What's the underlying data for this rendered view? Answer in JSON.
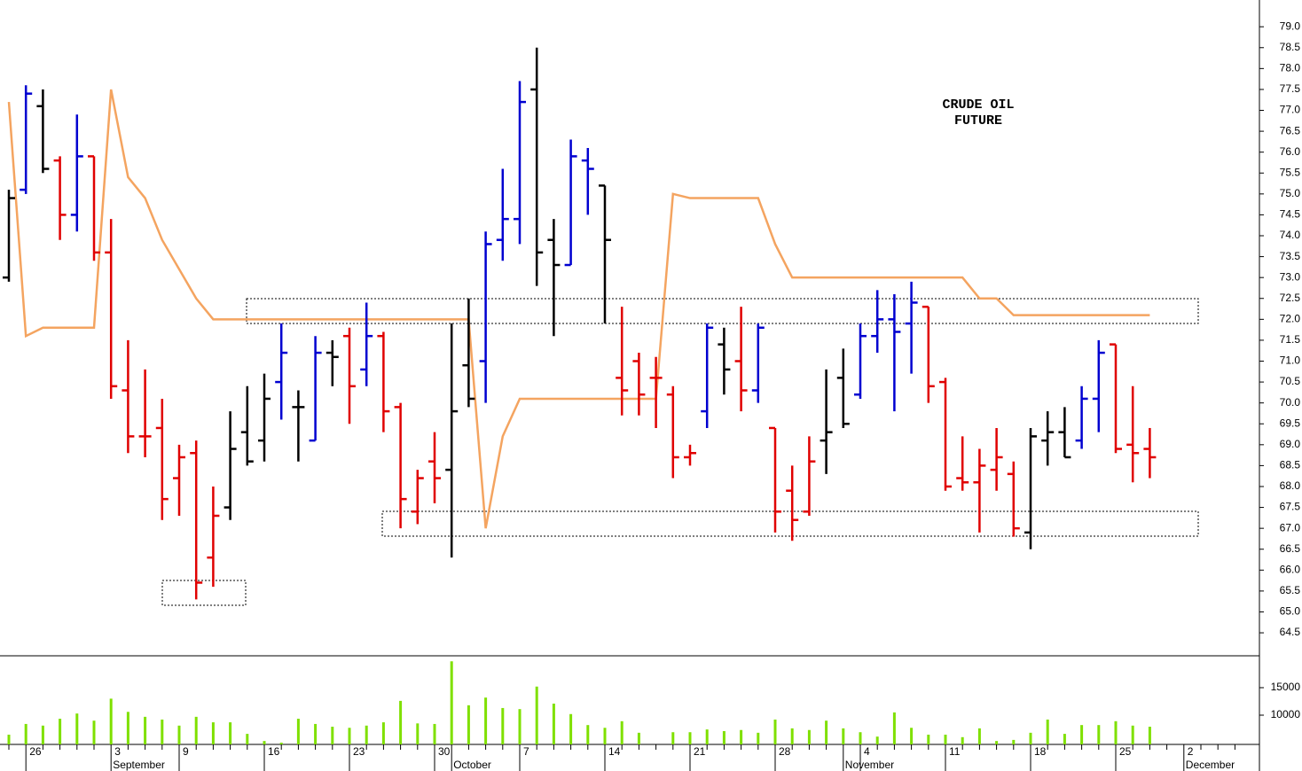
{
  "chart_data": {
    "type": "ohlc",
    "title_lines": [
      "CRUDE OIL",
      "FUTURE"
    ],
    "categories": [
      null,
      "26",
      null,
      null,
      null,
      null,
      "3",
      null,
      null,
      null,
      "9",
      null,
      null,
      null,
      null,
      "16",
      null,
      null,
      null,
      null,
      "23",
      null,
      null,
      null,
      null,
      "30",
      null,
      null,
      null,
      null,
      "7",
      null,
      null,
      null,
      null,
      "14",
      null,
      null,
      null,
      null,
      "21",
      null,
      null,
      null,
      null,
      "28",
      null,
      null,
      null,
      null,
      "4",
      null,
      null,
      null,
      null,
      "11",
      null,
      null,
      null,
      null,
      "18",
      null,
      null,
      null,
      null,
      "25",
      null,
      null,
      null,
      "2",
      null,
      null,
      null
    ],
    "month_labels": [
      null,
      null,
      null,
      null,
      null,
      null,
      "September",
      null,
      null,
      null,
      null,
      null,
      null,
      null,
      null,
      null,
      null,
      null,
      null,
      null,
      null,
      null,
      null,
      null,
      null,
      null,
      "October",
      null,
      null,
      null,
      null,
      null,
      null,
      null,
      null,
      null,
      null,
      null,
      null,
      null,
      null,
      null,
      null,
      null,
      null,
      null,
      null,
      null,
      null,
      "November",
      null,
      null,
      null,
      null,
      null,
      null,
      null,
      null,
      null,
      null,
      null,
      null,
      null,
      null,
      null,
      null,
      null,
      null,
      null,
      "December",
      null,
      null,
      null
    ],
    "open": [
      73.0,
      75.1,
      77.1,
      75.8,
      74.5,
      75.9,
      73.6,
      70.3,
      69.2,
      69.4,
      68.2,
      68.8,
      66.3,
      67.5,
      69.3,
      69.1,
      70.5,
      69.9,
      69.1,
      71.2,
      71.6,
      70.8,
      71.6,
      69.9,
      67.4,
      68.6,
      68.4,
      70.9,
      71.0,
      73.9,
      74.4,
      77.5,
      73.9,
      73.3,
      75.8,
      75.2,
      70.6,
      71.0,
      70.6,
      70.2,
      68.7,
      69.8,
      71.4,
      71.0,
      70.3,
      69.4,
      67.9,
      67.4,
      69.1,
      70.6,
      70.2,
      71.6,
      72.0,
      71.9,
      72.3,
      70.5,
      68.2,
      68.1,
      68.4,
      68.3,
      66.9,
      69.1,
      69.3,
      69.1,
      70.1,
      71.4,
      69.0,
      68.9,
      null,
      null,
      null,
      null,
      null
    ],
    "high": [
      75.1,
      77.6,
      77.5,
      75.9,
      76.9,
      75.9,
      74.4,
      71.5,
      70.8,
      70.1,
      69.0,
      69.1,
      68.0,
      69.8,
      70.4,
      70.7,
      71.9,
      70.3,
      71.6,
      71.5,
      71.8,
      72.4,
      71.7,
      70.0,
      68.4,
      69.3,
      71.9,
      72.5,
      74.1,
      75.6,
      77.7,
      78.5,
      74.4,
      76.3,
      76.1,
      75.2,
      72.3,
      71.2,
      71.1,
      70.4,
      69.0,
      71.9,
      71.8,
      72.3,
      71.9,
      69.4,
      68.5,
      69.2,
      70.8,
      71.3,
      71.9,
      72.7,
      72.6,
      72.9,
      72.3,
      70.6,
      69.2,
      68.9,
      69.4,
      68.6,
      69.4,
      69.8,
      69.9,
      70.4,
      71.5,
      71.4,
      70.4,
      69.4,
      null,
      null,
      null,
      null,
      null
    ],
    "low": [
      72.9,
      75.0,
      75.5,
      73.9,
      74.1,
      73.4,
      70.1,
      68.8,
      68.7,
      67.2,
      67.3,
      65.3,
      65.6,
      67.2,
      68.5,
      68.6,
      69.6,
      68.6,
      69.1,
      70.4,
      69.5,
      70.4,
      69.3,
      67.0,
      67.1,
      67.6,
      66.3,
      69.9,
      70.0,
      73.4,
      73.8,
      72.8,
      71.6,
      73.3,
      74.5,
      71.9,
      69.7,
      69.7,
      69.4,
      68.2,
      68.5,
      69.4,
      70.2,
      69.8,
      70.0,
      66.9,
      66.7,
      67.3,
      68.3,
      69.4,
      70.1,
      71.2,
      69.8,
      70.7,
      70.0,
      67.9,
      67.9,
      66.9,
      67.9,
      66.8,
      66.5,
      68.5,
      68.7,
      68.9,
      69.3,
      68.8,
      68.1,
      68.2,
      null,
      null,
      null,
      null,
      null
    ],
    "close": [
      74.9,
      77.4,
      75.6,
      74.5,
      75.9,
      73.6,
      70.4,
      69.2,
      69.2,
      67.7,
      68.7,
      65.7,
      67.3,
      68.9,
      68.6,
      70.1,
      71.2,
      69.9,
      71.2,
      71.1,
      70.4,
      71.6,
      69.8,
      67.7,
      68.2,
      68.2,
      69.8,
      70.1,
      73.8,
      74.4,
      77.2,
      73.6,
      73.3,
      75.9,
      75.6,
      73.9,
      70.3,
      70.2,
      70.6,
      68.7,
      68.8,
      71.8,
      70.8,
      70.3,
      71.8,
      67.4,
      67.2,
      68.6,
      69.3,
      69.5,
      71.6,
      72.0,
      71.7,
      72.4,
      70.4,
      68.0,
      68.1,
      68.5,
      68.7,
      67.0,
      69.2,
      69.3,
      68.7,
      70.1,
      71.2,
      68.9,
      68.8,
      68.7,
      null,
      null,
      null,
      null,
      null
    ],
    "bar_colors": [
      "#000000",
      "#0000d0",
      "#000000",
      "#e00000",
      "#0000d0",
      "#e00000",
      "#e00000",
      "#e00000",
      "#e00000",
      "#e00000",
      "#e00000",
      "#e00000",
      "#e00000",
      "#000000",
      "#000000",
      "#000000",
      "#0000d0",
      "#000000",
      "#0000d0",
      "#000000",
      "#e00000",
      "#0000d0",
      "#e00000",
      "#e00000",
      "#e00000",
      "#e00000",
      "#000000",
      "#000000",
      "#0000d0",
      "#0000d0",
      "#0000d0",
      "#000000",
      "#000000",
      "#0000d0",
      "#0000d0",
      "#000000",
      "#e00000",
      "#e00000",
      "#e00000",
      "#e00000",
      "#e00000",
      "#0000d0",
      "#000000",
      "#e00000",
      "#0000d0",
      "#e00000",
      "#e00000",
      "#e00000",
      "#000000",
      "#000000",
      "#0000d0",
      "#0000d0",
      "#0000d0",
      "#0000d0",
      "#e00000",
      "#e00000",
      "#e00000",
      "#e00000",
      "#e00000",
      "#e00000",
      "#000000",
      "#000000",
      "#000000",
      "#0000d0",
      "#0000d0",
      "#e00000",
      "#e00000",
      "#e00000",
      null,
      null,
      null,
      null,
      null
    ],
    "overlay": {
      "color": "#f4a460",
      "values": [
        77.2,
        71.6,
        71.8,
        71.8,
        71.8,
        71.8,
        77.5,
        75.4,
        74.9,
        73.9,
        73.2,
        72.5,
        72.0,
        72.0,
        72.0,
        72.0,
        72.0,
        72.0,
        72.0,
        72.0,
        72.0,
        72.0,
        72.0,
        72.0,
        72.0,
        72.0,
        72.0,
        72.0,
        67.0,
        69.2,
        70.1,
        70.1,
        70.1,
        70.1,
        70.1,
        70.1,
        70.1,
        70.1,
        70.1,
        75.0,
        74.9,
        74.9,
        74.9,
        74.9,
        74.9,
        73.8,
        73.0,
        73.0,
        73.0,
        73.0,
        73.0,
        73.0,
        73.0,
        73.0,
        73.0,
        73.0,
        73.0,
        72.5,
        72.5,
        72.1,
        72.1,
        72.1,
        72.1,
        72.1,
        72.1,
        72.1,
        72.1,
        72.1,
        null,
        null,
        null,
        null,
        null
      ]
    },
    "ylim": [
      63.95,
      79.64
    ],
    "yticks": [
      64.5,
      {
        "value": 65,
        "label": "65.0"
      },
      65.5,
      {
        "value": 66,
        "label": "66.0"
      },
      66.5,
      {
        "value": 67,
        "label": "67.0"
      },
      67.5,
      {
        "value": 68,
        "label": "68.0"
      },
      68.5,
      {
        "value": 69,
        "label": "69.0"
      },
      69.5,
      {
        "value": 70,
        "label": "70.0"
      },
      70.5,
      {
        "value": 71,
        "label": "71.0"
      },
      71.5,
      {
        "value": 72,
        "label": "72.0"
      },
      72.5,
      {
        "value": 73,
        "label": "73.0"
      },
      73.5,
      {
        "value": 74,
        "label": "74.0"
      },
      74.5,
      {
        "value": 75,
        "label": "75.0"
      },
      75.5,
      {
        "value": 76,
        "label": "76.0"
      },
      76.5,
      {
        "value": 77,
        "label": "77.0"
      },
      77.5,
      {
        "value": 78,
        "label": "78.0"
      },
      78.5,
      {
        "value": 79,
        "label": "79.0"
      }
    ],
    "volume": {
      "color": "#7fe000",
      "values": [
        6450,
        8400,
        8100,
        9350,
        10300,
        9000,
        13000,
        10600,
        9700,
        9200,
        8100,
        9700,
        8700,
        8700,
        6600,
        5300,
        5000,
        9350,
        8400,
        7900,
        7700,
        8100,
        8700,
        12600,
        8500,
        8400,
        19800,
        11800,
        13200,
        11300,
        11100,
        15200,
        12100,
        10200,
        8200,
        7700,
        8900,
        6800,
        null,
        6900,
        6900,
        7400,
        7100,
        7300,
        6800,
        9200,
        7600,
        7300,
        9000,
        7600,
        6900,
        6100,
        10500,
        7700,
        6450,
        6450,
        6000,
        7600,
        5300,
        5500,
        6800,
        9200,
        6600,
        8200,
        8200,
        8900,
        8100,
        7900,
        null,
        null,
        null,
        null,
        null
      ],
      "ylim": [
        4680,
        20800
      ],
      "yticks": [
        10000,
        15000
      ]
    }
  }
}
